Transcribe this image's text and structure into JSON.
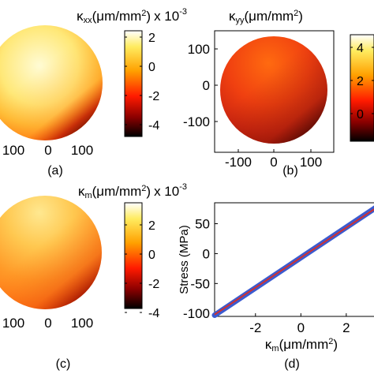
{
  "chart_data": [
    {
      "type": "heatmap",
      "panel": "(a)",
      "title": "κxx(μm/mm²) x 10-3",
      "title_parts": {
        "symbol": "κ",
        "sub": "xx",
        "unit": "(μm/mm",
        "sup": "2",
        "close": ")",
        "mult": "x 10",
        "exp": "-3"
      },
      "colormap": "hot",
      "shape": "circular wafer map",
      "x_ticks": [
        "100",
        "0",
        "100"
      ],
      "colorbar_ticks": [
        "2",
        "0",
        "-2",
        "-4"
      ],
      "colorbar_range": [
        -5,
        2.5
      ]
    },
    {
      "type": "heatmap",
      "panel": "(b)",
      "title": "κyy(μm/mm²)",
      "title_parts": {
        "symbol": "κ",
        "sub": "yy",
        "unit": "(μm/mm",
        "sup": "2",
        "close": ")"
      },
      "colormap": "hot",
      "shape": "circular wafer map",
      "x_ticks": [
        "-100",
        "0",
        "100"
      ],
      "y_ticks": [
        "100",
        "0",
        "-100"
      ],
      "colorbar_ticks": [
        "4",
        "2",
        "0"
      ]
    },
    {
      "type": "heatmap",
      "panel": "(c)",
      "title": "κm(μm/mm²) x 10-3",
      "title_parts": {
        "symbol": "κ",
        "sub": "m",
        "unit": "(μm/mm",
        "sup": "2",
        "close": ")",
        "mult": "x 10",
        "exp": "-3"
      },
      "colormap": "hot",
      "shape": "circular wafer map",
      "x_ticks": [
        "100",
        "0",
        "100"
      ],
      "colorbar_ticks": [
        "2",
        "0",
        "-2",
        "-4"
      ],
      "colorbar_range": [
        -5,
        3.5
      ]
    },
    {
      "type": "scatter",
      "panel": "(d)",
      "xlabel": "κm(μm/mm²)",
      "xlabel_parts": {
        "symbol": "κ",
        "sub": "m",
        "unit": "(μm/mm",
        "sup": "2",
        "close": ")"
      },
      "ylabel": "Stress (MPa)",
      "x_ticks": [
        "-2",
        "0",
        "2"
      ],
      "y_ticks": [
        "50",
        "0",
        "-50",
        "-100"
      ],
      "xlim": [
        -3.8,
        3.5
      ],
      "ylim": [
        -105,
        85
      ],
      "series": [
        {
          "role": "measured",
          "color": "#3b5bd0",
          "x": [
            -3.8,
            3.5
          ],
          "y": [
            -103,
            82
          ]
        },
        {
          "role": "fit",
          "color": "#d03030",
          "x": [
            -3.8,
            3.5
          ],
          "y": [
            -102,
            81
          ]
        }
      ]
    }
  ]
}
